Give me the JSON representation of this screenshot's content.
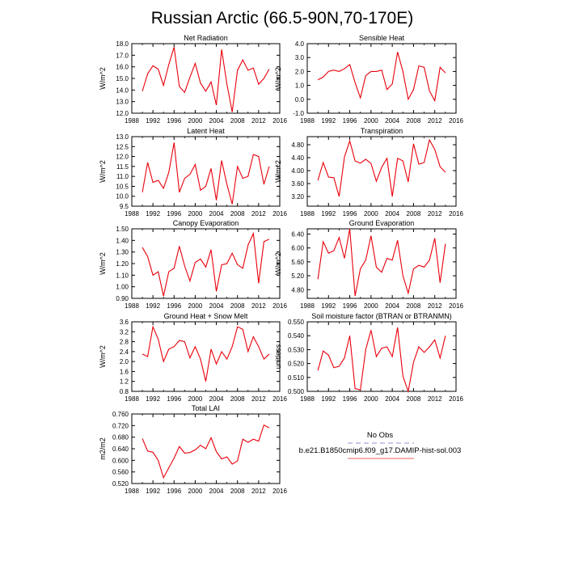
{
  "title": "Russian Arctic (66.5-90N,70-170E)",
  "legend": {
    "entries": [
      {
        "label": "No Obs",
        "color": "#a9a9d6",
        "dashed": true
      },
      {
        "label": "b.e21.B1850cmip6.f09_g17.DAMIP-hist-sol.003",
        "color": "#f08080",
        "dashed": false
      }
    ]
  },
  "colors": {
    "series": "#e8000b"
  },
  "chart_data": [
    {
      "type": "line",
      "title": "Net Radiation",
      "ylabel": "W/m^2",
      "xlim": [
        1988,
        2016
      ],
      "ylim": [
        12.0,
        18.0
      ],
      "xticks": [
        "1988",
        "1992",
        "1996",
        "2000",
        "2004",
        "2008",
        "2012",
        "2016"
      ],
      "yticks": [
        "12.0",
        "13.0",
        "14.0",
        "15.0",
        "16.0",
        "17.0",
        "18.0"
      ],
      "x": [
        1990,
        1991,
        1992,
        1993,
        1994,
        1995,
        1996,
        1997,
        1998,
        1999,
        2000,
        2001,
        2002,
        2003,
        2004,
        2005,
        2006,
        2007,
        2008,
        2009,
        2010,
        2011,
        2012,
        2013,
        2014
      ],
      "series": [
        {
          "values": [
            13.9,
            15.4,
            16.1,
            15.8,
            14.4,
            16.2,
            17.7,
            14.3,
            13.8,
            15.1,
            16.3,
            14.6,
            13.9,
            14.7,
            12.7,
            17.5,
            14.5,
            12.1,
            15.7,
            16.6,
            15.7,
            15.9,
            14.5,
            15.0,
            15.8
          ]
        }
      ]
    },
    {
      "type": "line",
      "title": "Sensible Heat",
      "ylabel": "W/m^2",
      "xlim": [
        1988,
        2016
      ],
      "ylim": [
        -1.0,
        4.0
      ],
      "xticks": [
        "1988",
        "1992",
        "1996",
        "2000",
        "2004",
        "2008",
        "2012",
        "2016"
      ],
      "yticks": [
        "-1.0",
        "0.0",
        "1.0",
        "2.0",
        "3.0",
        "4.0"
      ],
      "x": [
        1990,
        1991,
        1992,
        1993,
        1994,
        1995,
        1996,
        1997,
        1998,
        1999,
        2000,
        2001,
        2002,
        2003,
        2004,
        2005,
        2006,
        2007,
        2008,
        2009,
        2010,
        2011,
        2012,
        2013,
        2014
      ],
      "series": [
        {
          "values": [
            1.4,
            1.6,
            2.0,
            2.1,
            2.0,
            2.2,
            2.5,
            1.2,
            0.1,
            1.7,
            2.0,
            2.0,
            2.1,
            0.7,
            1.1,
            3.4,
            2.0,
            0.0,
            0.7,
            2.4,
            2.3,
            0.6,
            -0.1,
            2.3,
            1.9
          ]
        }
      ]
    },
    {
      "type": "line",
      "title": "Latent Heat",
      "ylabel": "W/m^2",
      "xlim": [
        1988,
        2016
      ],
      "ylim": [
        9.5,
        13.0
      ],
      "xticks": [
        "1988",
        "1992",
        "1996",
        "2000",
        "2004",
        "2008",
        "2012",
        "2016"
      ],
      "yticks": [
        "9.5",
        "10.0",
        "10.5",
        "11.0",
        "11.5",
        "12.0",
        "12.5",
        "13.0"
      ],
      "x": [
        1990,
        1991,
        1992,
        1993,
        1994,
        1995,
        1996,
        1997,
        1998,
        1999,
        2000,
        2001,
        2002,
        2003,
        2004,
        2005,
        2006,
        2007,
        2008,
        2009,
        2010,
        2011,
        2012,
        2013,
        2014
      ],
      "series": [
        {
          "values": [
            10.2,
            11.7,
            10.7,
            10.8,
            10.4,
            11.2,
            12.7,
            10.2,
            10.9,
            11.1,
            11.6,
            10.3,
            10.5,
            11.4,
            9.8,
            11.8,
            10.6,
            9.6,
            11.5,
            10.9,
            11.0,
            12.1,
            12.0,
            10.6,
            11.5
          ]
        }
      ]
    },
    {
      "type": "line",
      "title": "Transpiration",
      "ylabel": "W/m^2",
      "xlim": [
        1988,
        2016
      ],
      "ylim": [
        2.9,
        5.05
      ],
      "xticks": [
        "1988",
        "1992",
        "1996",
        "2000",
        "2004",
        "2008",
        "2012",
        "2016"
      ],
      "yticks": [
        "3.20",
        "3.60",
        "4.00",
        "4.40",
        "4.80"
      ],
      "x": [
        1990,
        1991,
        1992,
        1993,
        1994,
        1995,
        1996,
        1997,
        1998,
        1999,
        2000,
        2001,
        2002,
        2003,
        2004,
        2005,
        2006,
        2007,
        2008,
        2009,
        2010,
        2011,
        2012,
        2013,
        2014
      ],
      "series": [
        {
          "values": [
            3.7,
            4.25,
            3.8,
            3.78,
            3.2,
            4.42,
            4.92,
            4.3,
            4.23,
            4.35,
            4.22,
            3.67,
            4.1,
            4.38,
            3.2,
            4.38,
            4.3,
            3.65,
            4.83,
            4.2,
            4.25,
            4.95,
            4.65,
            4.12,
            3.95
          ]
        }
      ]
    },
    {
      "type": "line",
      "title": "Canopy Evaporation",
      "ylabel": "W/m^2",
      "xlim": [
        1988,
        2016
      ],
      "ylim": [
        0.9,
        1.5
      ],
      "xticks": [
        "1988",
        "1992",
        "1996",
        "2000",
        "2004",
        "2008",
        "2012",
        "2016"
      ],
      "yticks": [
        "0.90",
        "1.00",
        "1.10",
        "1.20",
        "1.30",
        "1.40",
        "1.50"
      ],
      "x": [
        1990,
        1991,
        1992,
        1993,
        1994,
        1995,
        1996,
        1997,
        1998,
        1999,
        2000,
        2001,
        2002,
        2003,
        2004,
        2005,
        2006,
        2007,
        2008,
        2009,
        2010,
        2011,
        2012,
        2013,
        2014
      ],
      "series": [
        {
          "values": [
            1.34,
            1.26,
            1.1,
            1.13,
            0.92,
            1.13,
            1.16,
            1.35,
            1.18,
            1.05,
            1.21,
            1.24,
            1.17,
            1.32,
            0.96,
            1.19,
            1.2,
            1.29,
            1.19,
            1.16,
            1.36,
            1.46,
            1.03,
            1.39,
            1.41
          ]
        }
      ]
    },
    {
      "type": "line",
      "title": "Ground Evaporation",
      "ylabel": "W/m^2",
      "xlim": [
        1988,
        2016
      ],
      "ylim": [
        4.55,
        6.55
      ],
      "xticks": [
        "1988",
        "1992",
        "1996",
        "2000",
        "2004",
        "2008",
        "2012",
        "2016"
      ],
      "yticks": [
        "4.80",
        "5.20",
        "5.60",
        "6.00",
        "6.40"
      ],
      "x": [
        1990,
        1991,
        1992,
        1993,
        1994,
        1995,
        1996,
        1997,
        1998,
        1999,
        2000,
        2001,
        2002,
        2003,
        2004,
        2005,
        2006,
        2007,
        2008,
        2009,
        2010,
        2011,
        2012,
        2013,
        2014
      ],
      "series": [
        {
          "values": [
            5.1,
            6.18,
            5.85,
            5.92,
            6.3,
            5.7,
            6.55,
            4.62,
            5.4,
            5.65,
            6.35,
            5.45,
            5.3,
            5.7,
            5.65,
            6.22,
            5.2,
            4.7,
            5.4,
            5.5,
            5.45,
            5.65,
            6.28,
            5.0,
            6.12
          ]
        }
      ]
    },
    {
      "type": "line",
      "title": "Ground Heat + Snow Melt",
      "ylabel": "W/m^2",
      "xlim": [
        1988,
        2016
      ],
      "ylim": [
        0.8,
        3.6
      ],
      "xticks": [
        "1988",
        "1992",
        "1996",
        "2000",
        "2004",
        "2008",
        "2012",
        "2016"
      ],
      "yticks": [
        "0.8",
        "1.2",
        "1.6",
        "2.0",
        "2.4",
        "2.8",
        "3.2",
        "3.6"
      ],
      "x": [
        1990,
        1991,
        1992,
        1993,
        1994,
        1995,
        1996,
        1997,
        1998,
        1999,
        2000,
        2001,
        2002,
        2003,
        2004,
        2005,
        2006,
        2007,
        2008,
        2009,
        2010,
        2011,
        2012,
        2013,
        2014
      ],
      "series": [
        {
          "values": [
            2.3,
            2.2,
            3.4,
            2.9,
            2.0,
            2.5,
            2.6,
            2.85,
            2.8,
            2.15,
            2.6,
            2.1,
            1.2,
            2.5,
            1.9,
            2.4,
            2.1,
            2.6,
            3.4,
            3.3,
            2.4,
            3.0,
            2.6,
            2.1,
            2.3
          ]
        }
      ]
    },
    {
      "type": "line",
      "title": "Soil moisture factor (BTRAN or BTRANMN)",
      "ylabel": "unitless",
      "xlim": [
        1988,
        2016
      ],
      "ylim": [
        0.5,
        0.55
      ],
      "xticks": [
        "1988",
        "1992",
        "1996",
        "2000",
        "2004",
        "2008",
        "2012",
        "2016"
      ],
      "yticks": [
        "0.500",
        "0.510",
        "0.520",
        "0.530",
        "0.540",
        "0.550"
      ],
      "x": [
        1990,
        1991,
        1992,
        1993,
        1994,
        1995,
        1996,
        1997,
        1998,
        1999,
        2000,
        2001,
        2002,
        2003,
        2004,
        2005,
        2006,
        2007,
        2008,
        2009,
        2010,
        2011,
        2012,
        2013,
        2014
      ],
      "series": [
        {
          "values": [
            0.515,
            0.529,
            0.526,
            0.517,
            0.518,
            0.524,
            0.54,
            0.502,
            0.501,
            0.53,
            0.544,
            0.525,
            0.531,
            0.532,
            0.525,
            0.546,
            0.511,
            0.5,
            0.521,
            0.532,
            0.528,
            0.532,
            0.537,
            0.524,
            0.54
          ]
        }
      ]
    },
    {
      "type": "line",
      "title": "Total LAI",
      "ylabel": "m2/m2",
      "xlim": [
        1988,
        2016
      ],
      "ylim": [
        0.52,
        0.76
      ],
      "xticks": [
        "1988",
        "1992",
        "1996",
        "2000",
        "2004",
        "2008",
        "2012",
        "2016"
      ],
      "yticks": [
        "0.520",
        "0.560",
        "0.600",
        "0.640",
        "0.680",
        "0.720",
        "0.760"
      ],
      "x": [
        1990,
        1991,
        1992,
        1993,
        1994,
        1995,
        1996,
        1997,
        1998,
        1999,
        2000,
        2001,
        2002,
        2003,
        2004,
        2005,
        2006,
        2007,
        2008,
        2009,
        2010,
        2011,
        2012,
        2013,
        2014
      ],
      "series": [
        {
          "values": [
            0.675,
            0.632,
            0.628,
            0.6,
            0.54,
            0.574,
            0.608,
            0.648,
            0.625,
            0.627,
            0.636,
            0.652,
            0.64,
            0.678,
            0.63,
            0.605,
            0.612,
            0.587,
            0.598,
            0.673,
            0.662,
            0.673,
            0.666,
            0.722,
            0.712
          ]
        }
      ]
    }
  ]
}
